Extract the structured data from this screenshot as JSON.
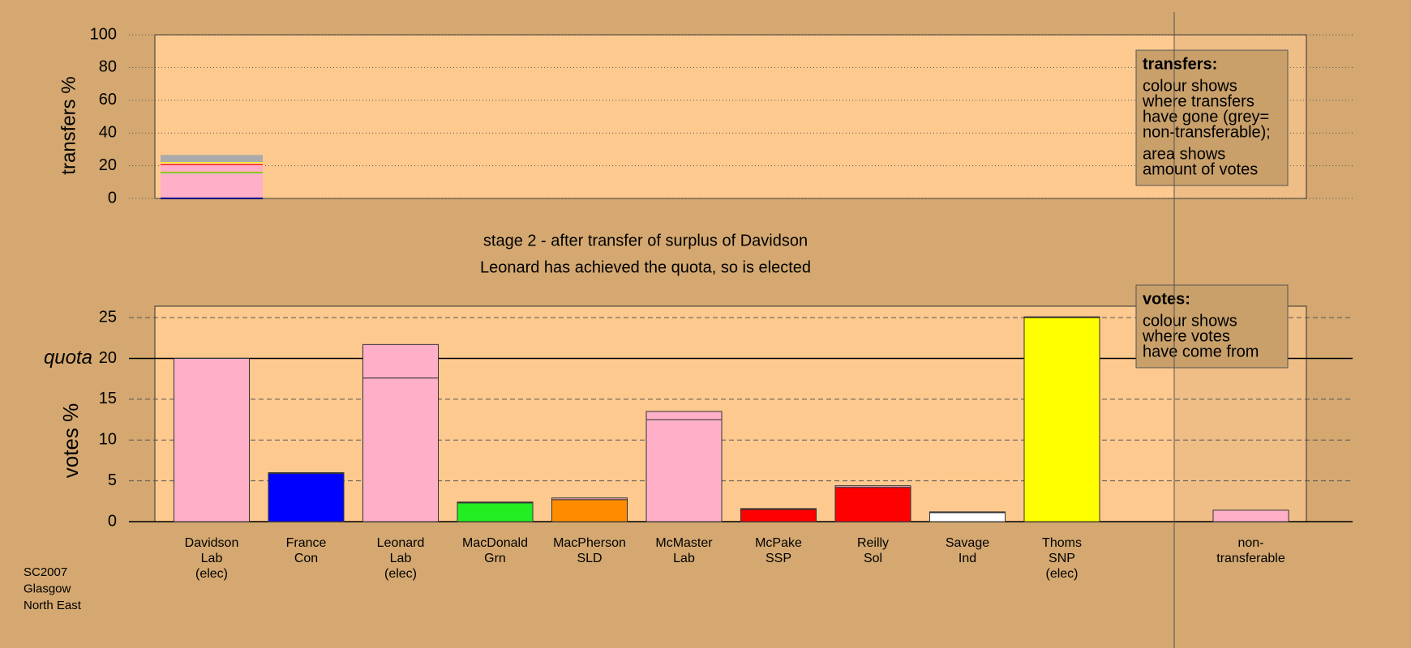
{
  "chart_data": [
    {
      "type": "bar",
      "axis_label": "transfers %",
      "ylim": [
        0,
        100
      ],
      "yticks": [
        0,
        20,
        40,
        60,
        80,
        100
      ],
      "grid": true,
      "segments": [
        {
          "color": "#0000ff",
          "value": 0.6
        },
        {
          "color": "#ffb0c8",
          "value": 14.8
        },
        {
          "color": "#22ee22",
          "value": 0.6
        },
        {
          "color": "#ff8c00",
          "value": 0.4
        },
        {
          "color": "#ffb0c8",
          "value": 4.0
        },
        {
          "color": "#ff0000",
          "value": 0.3
        },
        {
          "color": "#ff0000",
          "value": 0.5
        },
        {
          "color": "#ffffff",
          "value": 0.4
        },
        {
          "color": "#ffff00",
          "value": 0.6
        },
        {
          "color": "#aaaaaa",
          "value": 4.4
        }
      ],
      "legend": {
        "title": "transfers:",
        "paragraphs": [
          [
            "colour shows",
            "where transfers",
            "have gone (grey=",
            "non-transferable);"
          ],
          [
            "area shows",
            "amount of votes"
          ]
        ]
      }
    },
    {
      "type": "bar",
      "title": "stage 2 - after transfer of surplus of Davidson",
      "subtitle": "Leonard has achieved the quota, so is elected",
      "axis_label": "votes %",
      "quota_label": "quota",
      "quota": 20,
      "ylim": [
        0,
        26.4
      ],
      "yticks": [
        0,
        5,
        10,
        15,
        20,
        25
      ],
      "grid": true,
      "categories": [
        [
          "Davidson",
          "Lab",
          "(elec)"
        ],
        [
          "France",
          "Con"
        ],
        [
          "Leonard",
          "Lab",
          "(elec)"
        ],
        [
          "MacDonald",
          "Grn"
        ],
        [
          "MacPherson",
          "SLD"
        ],
        [
          "McMaster",
          "Lab"
        ],
        [
          "McPake",
          "SSP"
        ],
        [
          "Reilly",
          "Sol"
        ],
        [
          "Savage",
          "Ind"
        ],
        [
          "Thoms",
          "SNP",
          "(elec)"
        ],
        [
          "non-",
          "transferable"
        ]
      ],
      "series": [
        {
          "values": [
            20.0,
            5.9,
            17.6,
            2.3,
            2.7,
            12.5,
            1.5,
            4.2,
            1.1,
            25.0,
            0
          ],
          "colors": [
            "#ffb0c8",
            "#0000ff",
            "#ffb0c8",
            "#22ee22",
            "#ff8c00",
            "#ffb0c8",
            "#ff0000",
            "#ff0000",
            "#ffffff",
            "#ffff00",
            "#ffb0c8"
          ]
        },
        {
          "values": [
            0,
            0.1,
            4.1,
            0.1,
            0.2,
            1.0,
            0.1,
            0.2,
            0.1,
            0.1,
            1.4
          ],
          "color": "#ffb0c8"
        }
      ],
      "legend": {
        "title": "votes:",
        "paragraphs": [
          [
            "colour shows",
            "where votes",
            "have come from"
          ]
        ]
      }
    }
  ],
  "footer": [
    "SC2007",
    "Glasgow",
    "North East"
  ]
}
